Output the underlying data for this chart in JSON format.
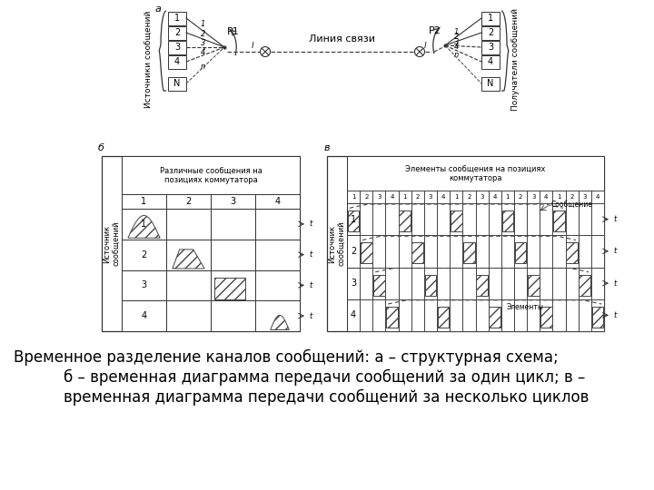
{
  "bg_color": "#ffffff",
  "label_a": "a",
  "label_b": "б",
  "label_v": "в",
  "p1_label": "P1",
  "p2_label": "P2",
  "liniya_label": "Линия связи",
  "sources_label": "Источники сообщений",
  "receivers_label": "Получатели сообщений",
  "istochnik_b": "Источник\nсообщений",
  "razlichnye_label": "Различные сообщения на\nпозициях коммутатора",
  "elementy_label": "Элементы сообщения на позициях\nкоммутатора",
  "soobshenie_label": "Сообщение",
  "elementy_anno": "Элементы",
  "caption_line1": "Временное разделение каналов сообщений: а – структурная схема;",
  "caption_line2": "б – временная диаграмма передачи сообщений за один цикл; в –",
  "caption_line3": "временная диаграмма передачи сообщений за несколько циклов"
}
